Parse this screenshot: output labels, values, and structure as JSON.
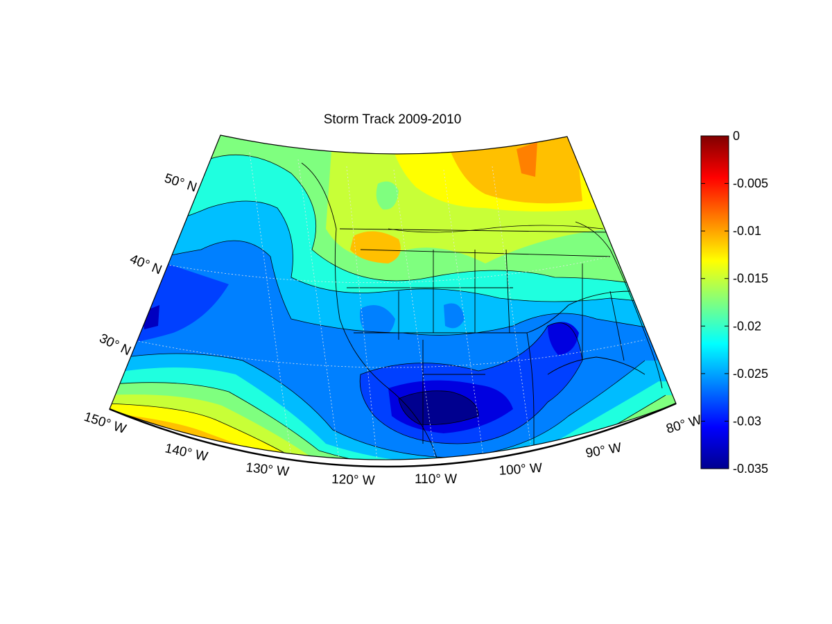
{
  "title": "Storm Track 2009-2010",
  "colorbar": {
    "ticks": [
      "0",
      "-0.005",
      "-0.01",
      "-0.015",
      "-0.02",
      "-0.025",
      "-0.03",
      "-0.035"
    ],
    "min": -0.035,
    "max": 0,
    "colormap": "jet"
  },
  "lon_labels": [
    "150° W",
    "140° W",
    "130° W",
    "120° W",
    "110° W",
    "100° W",
    "90° W",
    "80° W"
  ],
  "lat_labels": [
    "50° N",
    "40° N",
    "30° N"
  ],
  "colors": {
    "dark-red": "#800000",
    "red": "#ff0000",
    "orange": "#ff8000",
    "yellow": "#ffff00",
    "cyan": "#00ffff",
    "blue": "#0000ff",
    "dark-blue": "#00008f"
  }
}
